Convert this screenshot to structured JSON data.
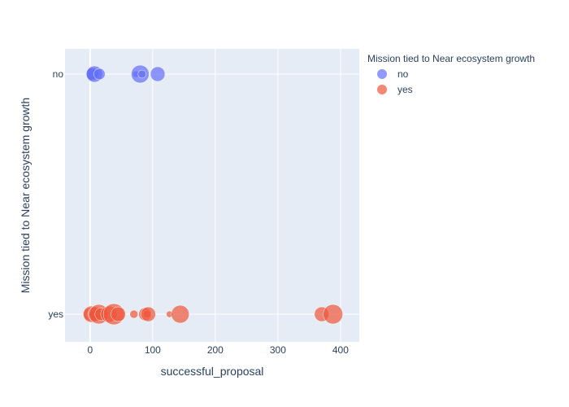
{
  "chart_data": {
    "type": "scatter",
    "xlabel": "successful_proposal",
    "ylabel": "Mission tied to Near ecosystem growth",
    "categories": [
      "no",
      "yes"
    ],
    "xlim": [
      -40,
      430
    ],
    "xticks": [
      0,
      100,
      200,
      300,
      400
    ],
    "x_tick_labels": [
      "0",
      "100",
      "200",
      "300",
      "400"
    ],
    "legend": {
      "title": "Mission tied to Near ecosystem growth",
      "placement": "right-top"
    },
    "grid": true,
    "series": [
      {
        "name": "no",
        "color": "#636efa",
        "points": [
          {
            "x": 2,
            "size": 7
          },
          {
            "x": 4,
            "size": 8
          },
          {
            "x": 7,
            "size": 10
          },
          {
            "x": 15,
            "size": 7
          },
          {
            "x": 73,
            "size": 4
          },
          {
            "x": 80,
            "size": 11
          },
          {
            "x": 83,
            "size": 5
          },
          {
            "x": 108,
            "size": 9
          }
        ]
      },
      {
        "name": "yes",
        "color": "#ef553b",
        "points": [
          {
            "x": 0,
            "size": 8
          },
          {
            "x": 2,
            "size": 10
          },
          {
            "x": 5,
            "size": 6
          },
          {
            "x": 8,
            "size": 9
          },
          {
            "x": 14,
            "size": 12
          },
          {
            "x": 18,
            "size": 8
          },
          {
            "x": 30,
            "size": 10
          },
          {
            "x": 38,
            "size": 13
          },
          {
            "x": 45,
            "size": 9
          },
          {
            "x": 70,
            "size": 5
          },
          {
            "x": 88,
            "size": 8
          },
          {
            "x": 91,
            "size": 5
          },
          {
            "x": 93,
            "size": 9
          },
          {
            "x": 127,
            "size": 4
          },
          {
            "x": 144,
            "size": 11
          },
          {
            "x": 370,
            "size": 9
          },
          {
            "x": 388,
            "size": 12
          }
        ]
      }
    ]
  }
}
